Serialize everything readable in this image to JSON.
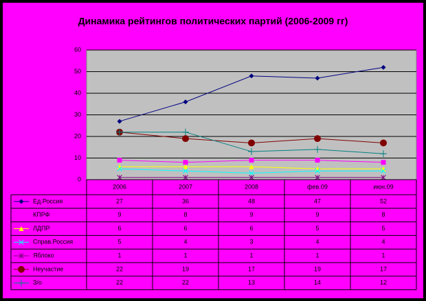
{
  "chart_data": {
    "type": "line",
    "title": "Динамика рейтингов политических партий (2006-2009 гг)",
    "categories": [
      "2006",
      "2007",
      "2008",
      "фев.09",
      "июн.09"
    ],
    "ylim": [
      0,
      60
    ],
    "yticks": [
      0,
      10,
      20,
      30,
      40,
      50,
      60
    ],
    "grid": true,
    "series": [
      {
        "name": "Ед.Россия",
        "color": "#000080",
        "marker": "diamond",
        "values": [
          27,
          36,
          48,
          47,
          52
        ]
      },
      {
        "name": "КПРФ",
        "color": "#ff00ff",
        "marker": "square",
        "values": [
          9,
          8,
          9,
          9,
          8
        ]
      },
      {
        "name": "ЛДПР",
        "color": "#ffff00",
        "marker": "triangle",
        "values": [
          6,
          6,
          6,
          5,
          5
        ]
      },
      {
        "name": "Справ.Россия",
        "color": "#00ffff",
        "marker": "x",
        "values": [
          5,
          4,
          3,
          4,
          4
        ]
      },
      {
        "name": "Яблоко",
        "color": "#800080",
        "marker": "star",
        "values": [
          1,
          1,
          1,
          1,
          1
        ]
      },
      {
        "name": "Неучастие",
        "color": "#800000",
        "marker": "circle",
        "values": [
          22,
          19,
          17,
          19,
          17
        ]
      },
      {
        "name": "З/о",
        "color": "#008080",
        "marker": "plus",
        "values": [
          22,
          22,
          13,
          14,
          12
        ]
      }
    ]
  }
}
